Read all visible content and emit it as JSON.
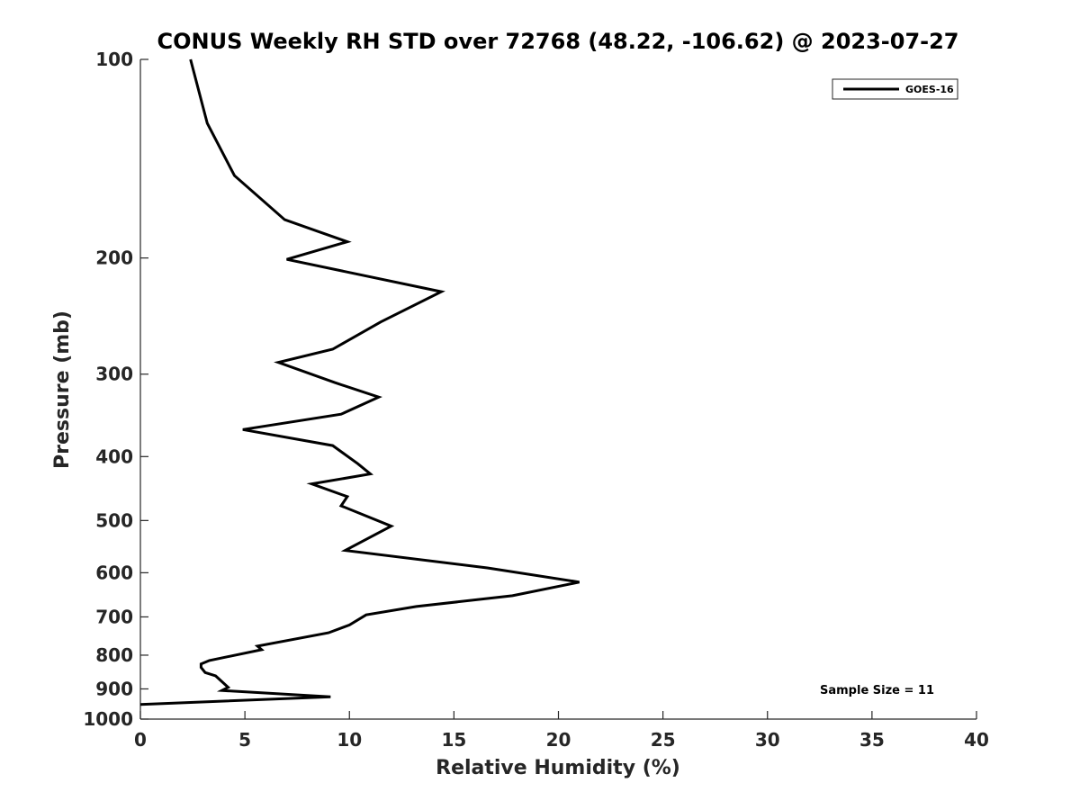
{
  "chart_data": {
    "type": "line",
    "title": "CONUS Weekly RH STD over 72768 (48.22, -106.62) @ 2023-07-27",
    "xlabel": "Relative Humidity (%)",
    "ylabel": "Pressure (mb)",
    "xlim": [
      0,
      40
    ],
    "ylim": [
      100,
      1000
    ],
    "y_scale": "log",
    "y_reversed": true,
    "xticks": [
      0,
      5,
      10,
      15,
      20,
      25,
      30,
      35,
      40
    ],
    "yticks": [
      100,
      200,
      300,
      400,
      500,
      600,
      700,
      800,
      900,
      1000
    ],
    "grid": false,
    "legend_position": "top-right",
    "series": [
      {
        "name": "GOES-16",
        "color": "#000000",
        "points": [
          [
            2.4,
            100
          ],
          [
            3.2,
            125
          ],
          [
            4.5,
            150
          ],
          [
            6.9,
            175
          ],
          [
            9.9,
            189
          ],
          [
            7.0,
            201
          ],
          [
            14.4,
            225
          ],
          [
            11.5,
            250
          ],
          [
            9.2,
            275
          ],
          [
            6.6,
            288
          ],
          [
            9.3,
            309
          ],
          [
            11.4,
            325
          ],
          [
            9.6,
            345
          ],
          [
            4.9,
            364
          ],
          [
            9.2,
            385
          ],
          [
            10.4,
            410
          ],
          [
            11.0,
            425
          ],
          [
            8.2,
            440
          ],
          [
            9.9,
            460
          ],
          [
            9.6,
            475
          ],
          [
            12.0,
            510
          ],
          [
            9.8,
            555
          ],
          [
            16.6,
            590
          ],
          [
            21.0,
            620
          ],
          [
            17.8,
            650
          ],
          [
            13.2,
            675
          ],
          [
            10.8,
            695
          ],
          [
            10.0,
            720
          ],
          [
            9.0,
            740
          ],
          [
            5.6,
            775
          ],
          [
            5.8,
            785
          ],
          [
            3.3,
            815
          ],
          [
            2.9,
            825
          ],
          [
            2.9,
            835
          ],
          [
            3.1,
            850
          ],
          [
            3.6,
            860
          ],
          [
            4.2,
            895
          ],
          [
            3.9,
            905
          ],
          [
            9.1,
            925
          ],
          [
            0.0,
            950
          ]
        ]
      }
    ],
    "annotation": "Sample Size = 11"
  }
}
